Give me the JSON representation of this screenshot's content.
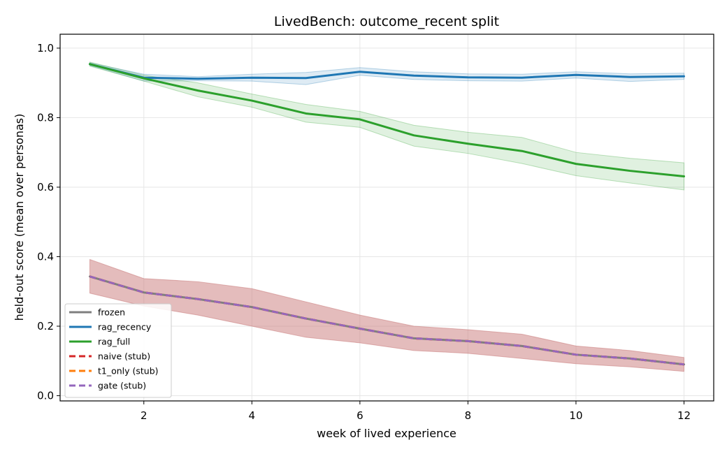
{
  "chart_data": {
    "type": "line",
    "title": "LivedBench: outcome_recent split",
    "xlabel": "week of lived experience",
    "ylabel": "held-out score (mean over personas)",
    "xlim": [
      0.45,
      12.55
    ],
    "ylim": [
      -0.015,
      1.04
    ],
    "xticks": [
      2,
      4,
      6,
      8,
      10,
      12
    ],
    "yticks": [
      0.0,
      0.2,
      0.4,
      0.6,
      0.8,
      1.0
    ],
    "ytick_labels": [
      "0.0",
      "0.2",
      "0.4",
      "0.6",
      "0.8",
      "1.0"
    ],
    "grid": true,
    "legend_position": "lower-left",
    "x": [
      1,
      2,
      3,
      4,
      5,
      6,
      7,
      8,
      9,
      10,
      11,
      12
    ],
    "series": [
      {
        "name": "frozen",
        "color": "#7f7f7f",
        "style": "solid",
        "values": [
          0.343,
          0.297,
          0.278,
          0.255,
          0.222,
          0.193,
          0.165,
          0.157,
          0.143,
          0.118,
          0.107,
          0.09
        ],
        "band_lower": [
          0.295,
          0.258,
          0.232,
          0.2,
          0.168,
          0.152,
          0.13,
          0.122,
          0.107,
          0.092,
          0.083,
          0.07
        ],
        "band_upper": [
          0.392,
          0.337,
          0.328,
          0.308,
          0.27,
          0.232,
          0.2,
          0.19,
          0.177,
          0.143,
          0.13,
          0.11
        ],
        "band_color": "#c97a7a"
      },
      {
        "name": "rag_recency",
        "color": "#1f77b4",
        "style": "solid",
        "values": [
          0.954,
          0.915,
          0.912,
          0.915,
          0.914,
          0.932,
          0.921,
          0.916,
          0.915,
          0.923,
          0.917,
          0.919
        ],
        "band_lower": [
          0.95,
          0.905,
          0.906,
          0.905,
          0.895,
          0.922,
          0.91,
          0.906,
          0.905,
          0.914,
          0.904,
          0.91
        ],
        "band_upper": [
          0.958,
          0.925,
          0.918,
          0.925,
          0.93,
          0.944,
          0.932,
          0.926,
          0.925,
          0.932,
          0.926,
          0.928
        ],
        "band_color": "#1f77b4"
      },
      {
        "name": "rag_full",
        "color": "#2ca02c",
        "style": "solid",
        "values": [
          0.954,
          0.913,
          0.878,
          0.849,
          0.812,
          0.795,
          0.749,
          0.725,
          0.704,
          0.667,
          0.647,
          0.631
        ],
        "band_lower": [
          0.948,
          0.905,
          0.86,
          0.83,
          0.787,
          0.772,
          0.718,
          0.697,
          0.668,
          0.633,
          0.612,
          0.592
        ],
        "band_upper": [
          0.96,
          0.922,
          0.9,
          0.868,
          0.838,
          0.818,
          0.778,
          0.758,
          0.743,
          0.7,
          0.683,
          0.67
        ],
        "band_color": "#2ca02c"
      },
      {
        "name": "naive (stub)",
        "color": "#d62728",
        "style": "dashed",
        "values": [
          0.343,
          0.297,
          0.278,
          0.255,
          0.222,
          0.193,
          0.165,
          0.157,
          0.143,
          0.118,
          0.107,
          0.09
        ]
      },
      {
        "name": "t1_only (stub)",
        "color": "#ff7f0e",
        "style": "dashed",
        "values": [
          0.343,
          0.297,
          0.278,
          0.255,
          0.222,
          0.193,
          0.165,
          0.157,
          0.143,
          0.118,
          0.107,
          0.09
        ]
      },
      {
        "name": "gate (stub)",
        "color": "#9467bd",
        "style": "dashed",
        "values": [
          0.343,
          0.297,
          0.278,
          0.255,
          0.222,
          0.193,
          0.165,
          0.157,
          0.143,
          0.118,
          0.107,
          0.09
        ]
      }
    ]
  }
}
